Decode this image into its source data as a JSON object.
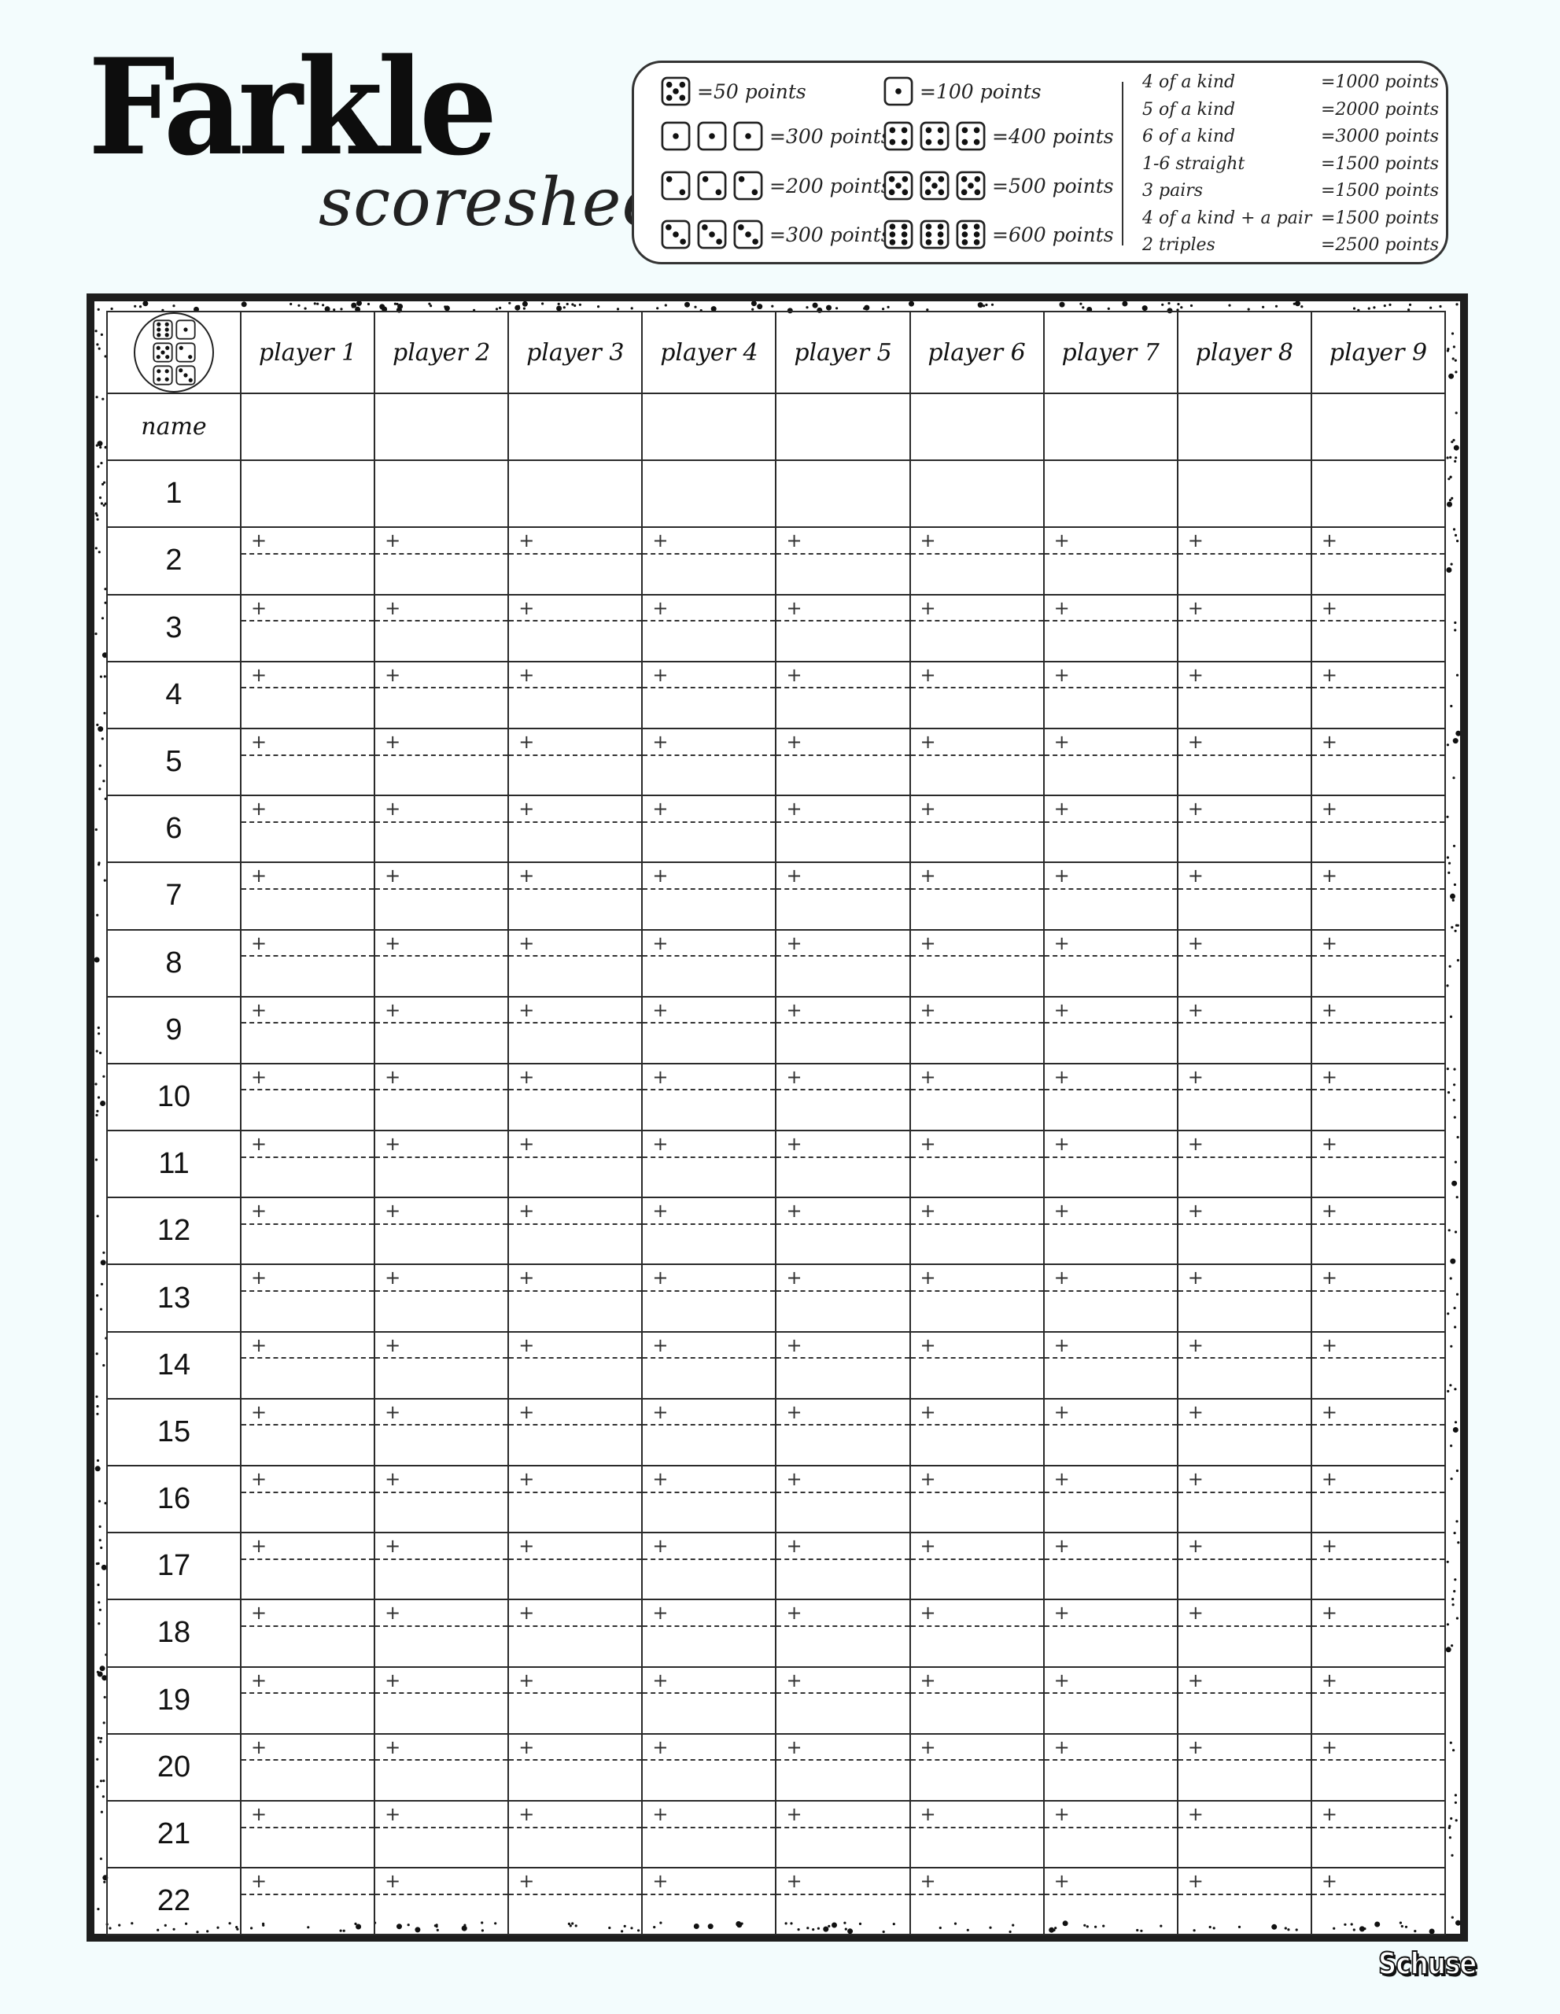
{
  "header": {
    "title": "Farkle",
    "subtitle": "scoresheet"
  },
  "legend": {
    "dice_scores": [
      {
        "faces": [
          5
        ],
        "label": "=50 points"
      },
      {
        "faces": [
          1
        ],
        "label": "=100 points"
      },
      {
        "faces": [
          1,
          1,
          1
        ],
        "label": "=300 points"
      },
      {
        "faces": [
          4,
          4,
          4
        ],
        "label": "=400 points"
      },
      {
        "faces": [
          2,
          2,
          2
        ],
        "label": "=200 points"
      },
      {
        "faces": [
          5,
          5,
          5
        ],
        "label": "=500 points"
      },
      {
        "faces": [
          3,
          3,
          3
        ],
        "label": "=300 points"
      },
      {
        "faces": [
          6,
          6,
          6
        ],
        "label": "=600 points"
      }
    ],
    "combos": [
      {
        "name": "4 of a kind",
        "points": "=1000 points"
      },
      {
        "name": "5 of a kind",
        "points": "=2000 points"
      },
      {
        "name": "6 of a kind",
        "points": "=3000 points"
      },
      {
        "name": "1-6 straight",
        "points": "=1500 points"
      },
      {
        "name": "3 pairs",
        "points": "=1500 points"
      },
      {
        "name": "4 of a kind + a pair",
        "points": "=1500 points"
      },
      {
        "name": "2 triples",
        "points": "=2500 points"
      }
    ]
  },
  "sheet": {
    "logo_faces": [
      6,
      1,
      5,
      2,
      4,
      3
    ],
    "players": [
      "player 1",
      "player 2",
      "player 3",
      "player 4",
      "player 5",
      "player 6",
      "player 7",
      "player 8",
      "player 9"
    ],
    "name_label": "name",
    "rounds": [
      "1",
      "2",
      "3",
      "4",
      "5",
      "6",
      "7",
      "8",
      "9",
      "10",
      "11",
      "12",
      "13",
      "14",
      "15",
      "16",
      "17",
      "18",
      "19",
      "20",
      "21",
      "22"
    ],
    "plus_sign": "+"
  },
  "footer": {
    "brand": "Schuse"
  }
}
